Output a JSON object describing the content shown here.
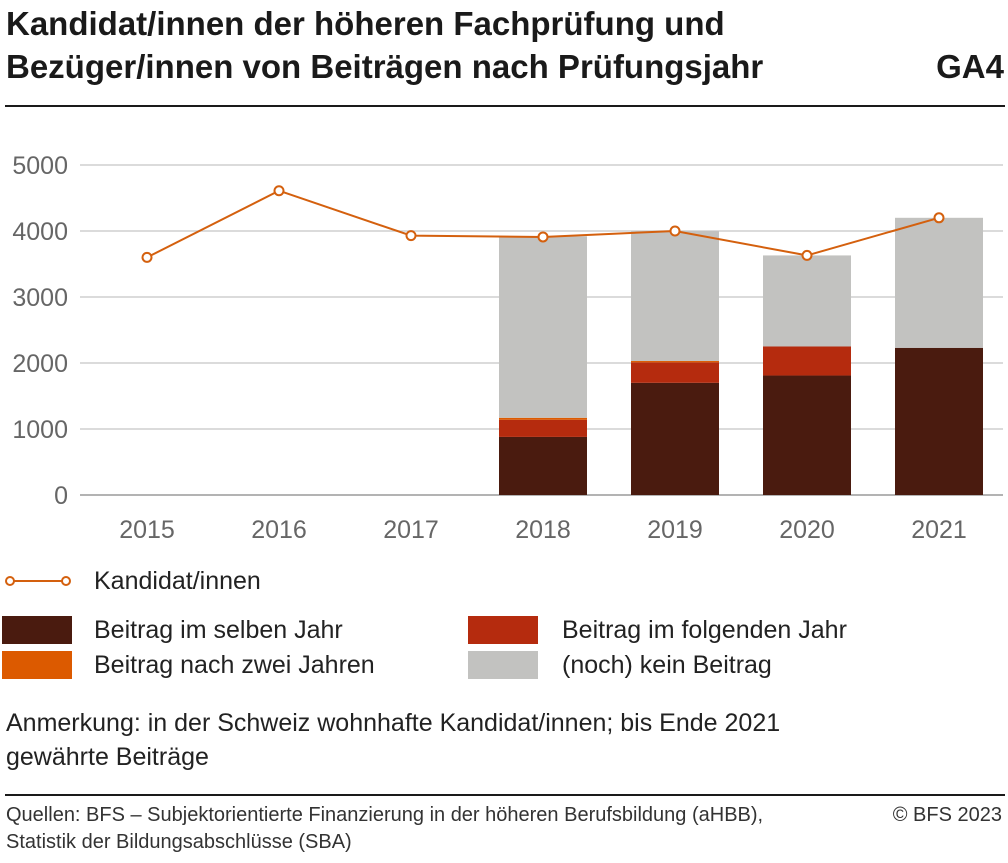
{
  "header": {
    "title_line1": "Kandidat/innen der höheren Fachprüfung und",
    "title_line2": "Bezüger/innen von Beiträgen nach Prüfungsjahr",
    "chart_id": "GA4"
  },
  "legend": {
    "line_label": "Kandidat/innen",
    "items": [
      {
        "label": "Beitrag im selben Jahr",
        "color": "#4a1b0f"
      },
      {
        "label": "Beitrag im folgenden Jahr",
        "color": "#b52b0e"
      },
      {
        "label": "Beitrag nach zwei Jahren",
        "color": "#dc5a00"
      },
      {
        "label": "(noch) kein Beitrag",
        "color": "#c2c2c0"
      }
    ]
  },
  "note": {
    "line1": "Anmerkung: in der Schweiz wohnhafte Kandidat/innen; bis Ende 2021",
    "line2": "gewährte Beiträge"
  },
  "footer": {
    "source_line1": "Quellen: BFS – Subjektorientierte Finanzierung in der höheren Berufsbildung (aHBB),",
    "source_line2": "Statistik der Bildungsabschlüsse (SBA)",
    "copyright": "© BFS 2023"
  },
  "chart_data": {
    "type": "bar",
    "stacked": true,
    "categories": [
      "2015",
      "2016",
      "2017",
      "2018",
      "2019",
      "2020",
      "2021"
    ],
    "ylim": [
      0,
      5000
    ],
    "yticks": [
      0,
      1000,
      2000,
      3000,
      4000,
      5000
    ],
    "grid": true,
    "series": [
      {
        "name": "Beitrag im selben Jahr",
        "color": "#4a1b0f",
        "values": [
          null,
          null,
          null,
          880,
          1700,
          1810,
          2230
        ]
      },
      {
        "name": "Beitrag im folgenden Jahr",
        "color": "#b52b0e",
        "values": [
          null,
          null,
          null,
          260,
          310,
          440,
          0
        ]
      },
      {
        "name": "Beitrag nach zwei Jahren",
        "color": "#dc5a00",
        "values": [
          null,
          null,
          null,
          30,
          20,
          0,
          0
        ]
      },
      {
        "name": "(noch) kein Beitrag",
        "color": "#c2c2c0",
        "values": [
          null,
          null,
          null,
          2750,
          1970,
          1380,
          1970
        ]
      }
    ],
    "line": {
      "name": "Kandidat/innen",
      "color": "#d4600e",
      "values": [
        3600,
        4610,
        3930,
        3910,
        4000,
        3630,
        4200
      ]
    }
  }
}
